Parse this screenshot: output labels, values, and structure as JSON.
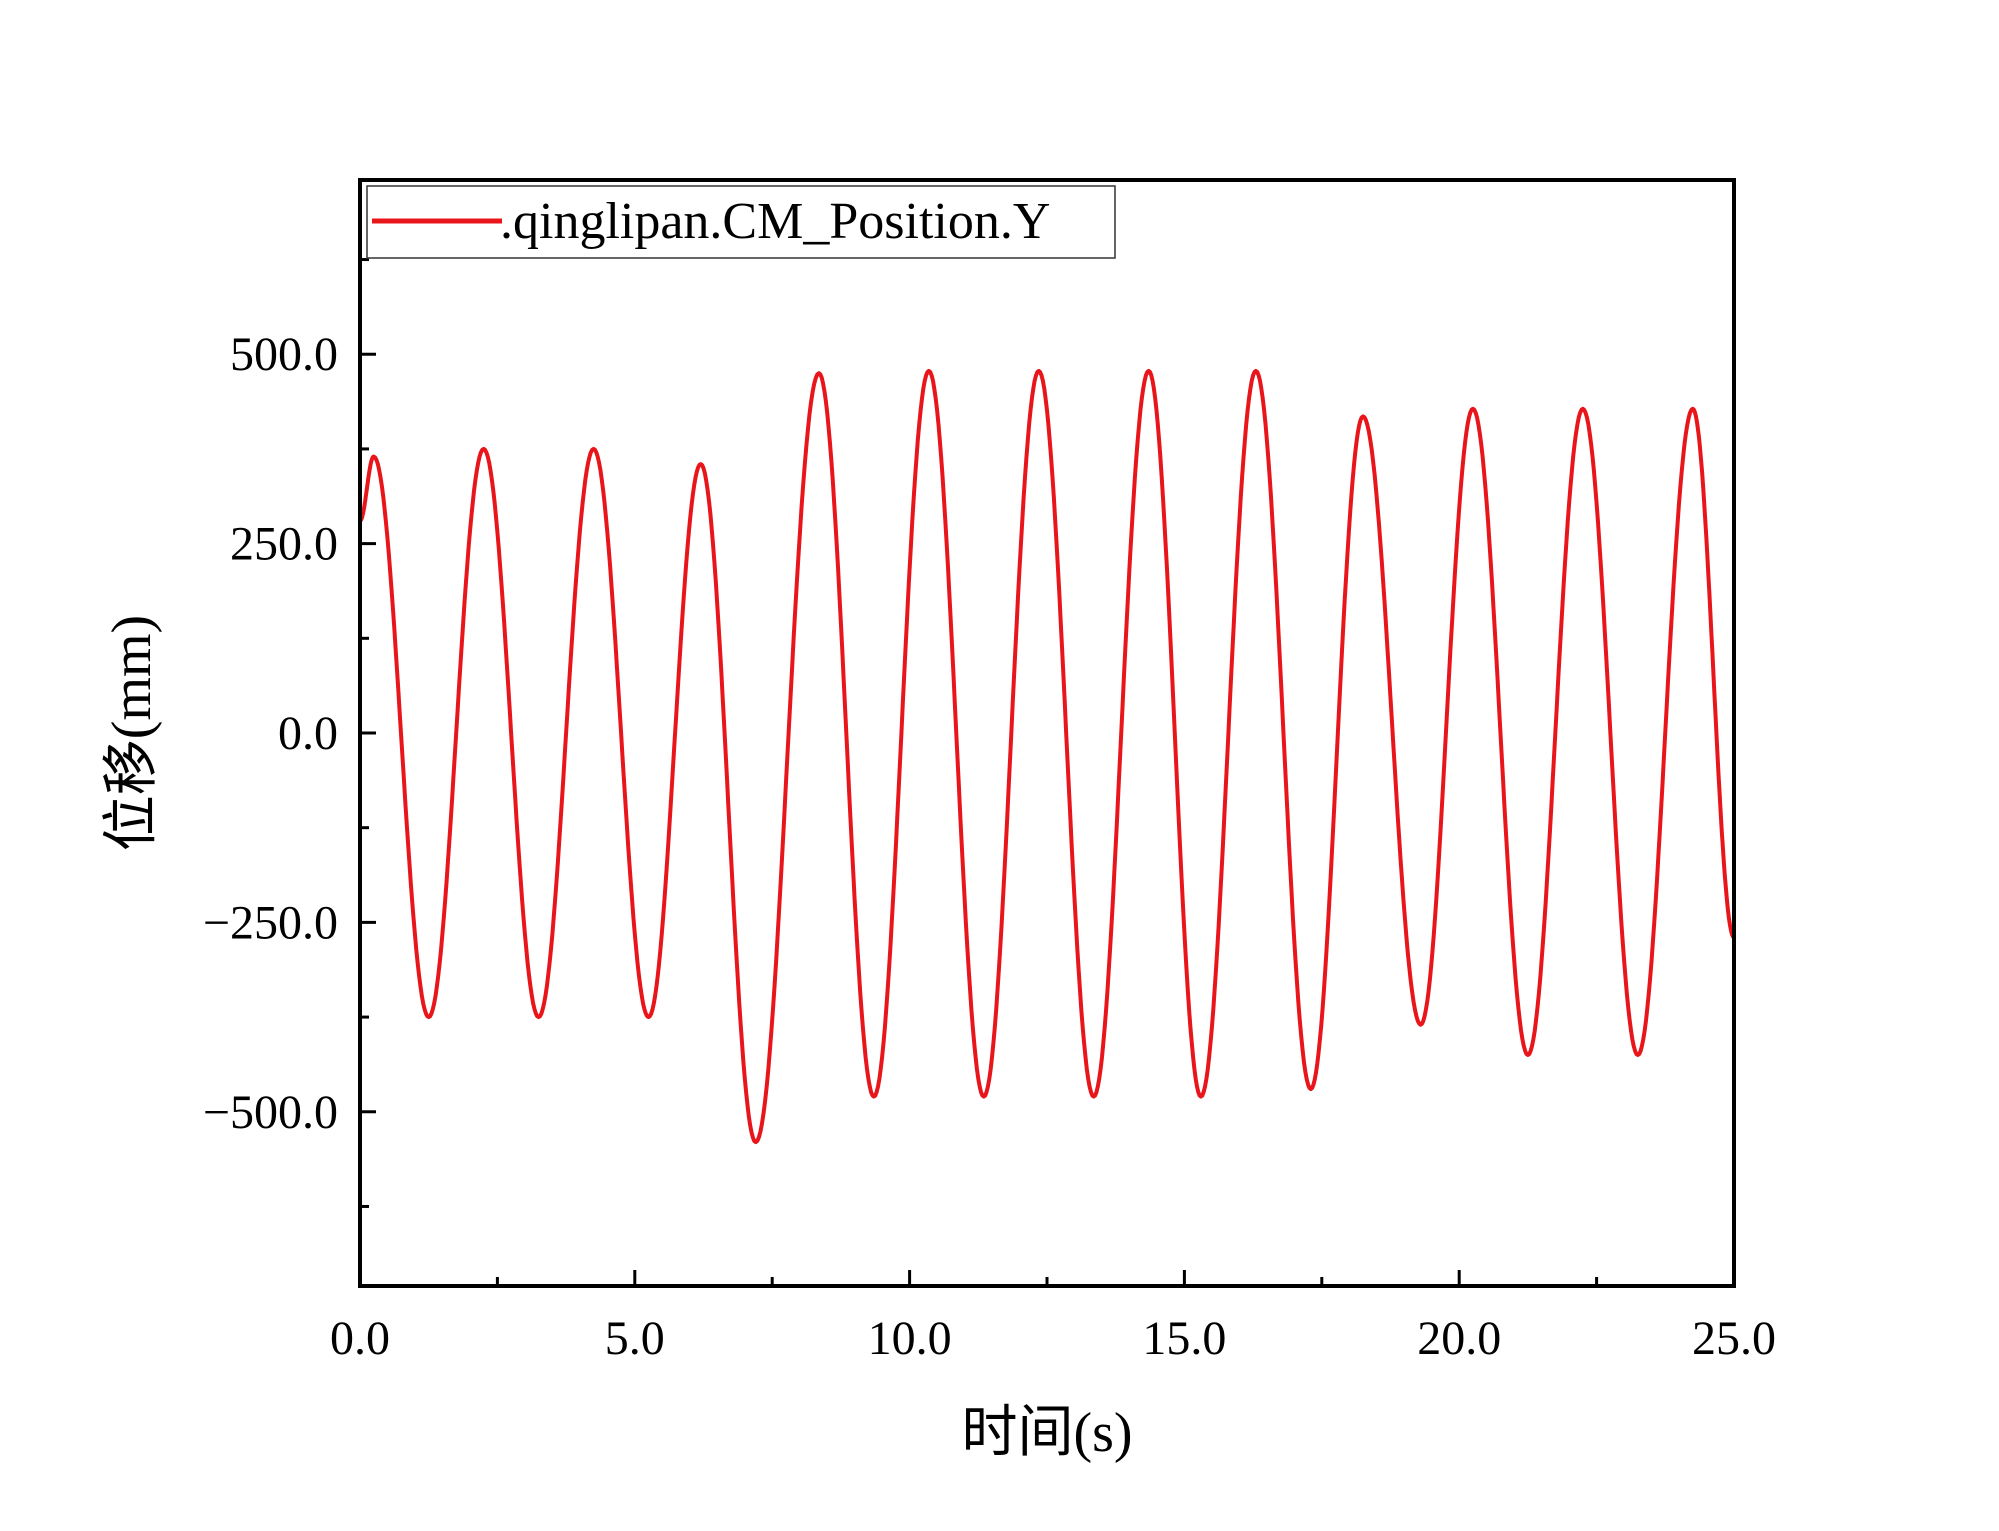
{
  "chart_data": {
    "type": "line",
    "title": "",
    "xlabel": "时间(s)",
    "ylabel": "位移(mm)",
    "xlim": [
      0,
      25
    ],
    "ylim": [
      -730,
      730
    ],
    "x_ticks": [
      0,
      5,
      10,
      15,
      20,
      25
    ],
    "x_tick_labels": [
      "0.0",
      "5.0",
      "10.0",
      "15.0",
      "20.0",
      "25.0"
    ],
    "x_minor_ticks": [
      2.5,
      7.5,
      12.5,
      17.5,
      22.5
    ],
    "y_ticks": [
      500,
      250,
      0,
      -250,
      -500
    ],
    "y_tick_labels": [
      "500.0",
      "250.0",
      "0.0",
      "−250.0",
      "−500.0"
    ],
    "y_minor_ticks": [
      625,
      375,
      125,
      -125,
      -375,
      -625
    ],
    "legend": {
      "placement": "top-left",
      "entries": [
        ".qinglipan.CM_Position.Y"
      ]
    },
    "series": [
      {
        "name": ".qinglipan.CM_Position.Y",
        "color": "#e8161b",
        "extrema": [
          [
            0.0,
            280
          ],
          [
            0.25,
            365
          ],
          [
            1.25,
            -375
          ],
          [
            2.25,
            375
          ],
          [
            3.25,
            -375
          ],
          [
            4.25,
            375
          ],
          [
            5.25,
            -375
          ],
          [
            6.2,
            355
          ],
          [
            7.2,
            -540
          ],
          [
            8.35,
            475
          ],
          [
            9.35,
            -480
          ],
          [
            10.35,
            478
          ],
          [
            11.35,
            -480
          ],
          [
            12.35,
            478
          ],
          [
            13.35,
            -480
          ],
          [
            14.35,
            478
          ],
          [
            15.3,
            -480
          ],
          [
            16.3,
            478
          ],
          [
            17.3,
            -470
          ],
          [
            18.25,
            418
          ],
          [
            19.3,
            -385
          ],
          [
            20.25,
            428
          ],
          [
            21.25,
            -425
          ],
          [
            22.25,
            428
          ],
          [
            23.25,
            -425
          ],
          [
            24.25,
            428
          ],
          [
            25.0,
            -270
          ]
        ]
      }
    ]
  }
}
